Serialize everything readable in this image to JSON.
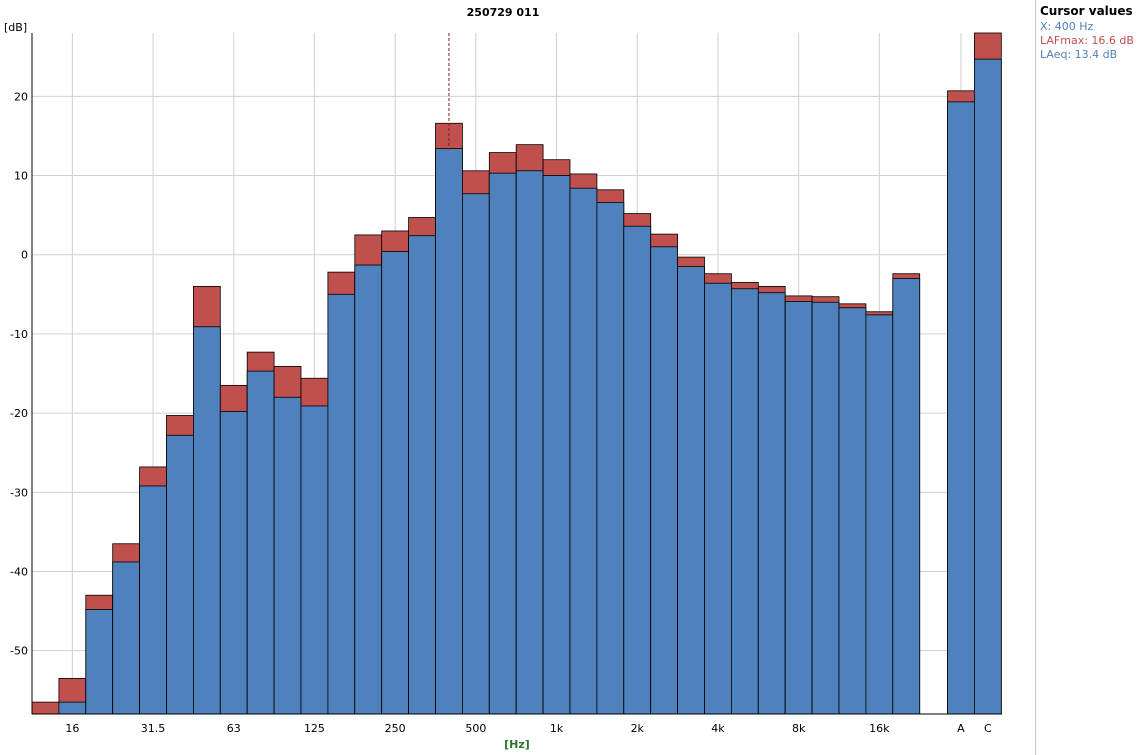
{
  "chart_data": {
    "type": "bar",
    "title": "250729 011",
    "xlabel": "[Hz]",
    "ylabel": "[dB]",
    "ylim": [
      -58,
      28
    ],
    "yticks": [
      20,
      10,
      0,
      -10,
      -20,
      -30,
      -40,
      -50
    ],
    "grid": true,
    "categories": [
      "12.5",
      "16",
      "20",
      "25",
      "31.5",
      "40",
      "50",
      "63",
      "80",
      "100",
      "125",
      "160",
      "200",
      "250",
      "315",
      "400",
      "500",
      "630",
      "800",
      "1k",
      "1.25k",
      "1.6k",
      "2k",
      "2.5k",
      "3.15k",
      "4k",
      "5k",
      "6.3k",
      "8k",
      "10k",
      "12.5k",
      "16k",
      "20k",
      "A",
      "C"
    ],
    "x_tick_labels": [
      {
        "index": 1,
        "label": "16"
      },
      {
        "index": 4,
        "label": "31.5"
      },
      {
        "index": 7,
        "label": "63"
      },
      {
        "index": 10,
        "label": "125"
      },
      {
        "index": 13,
        "label": "250"
      },
      {
        "index": 16,
        "label": "500"
      },
      {
        "index": 19,
        "label": "1k"
      },
      {
        "index": 22,
        "label": "2k"
      },
      {
        "index": 25,
        "label": "4k"
      },
      {
        "index": 28,
        "label": "8k"
      },
      {
        "index": 31,
        "label": "16k"
      },
      {
        "index": 33,
        "label": "A"
      },
      {
        "index": 34,
        "label": "C"
      }
    ],
    "series": [
      {
        "name": "LAFmax",
        "color": "#c0504d",
        "values": [
          -56.5,
          -53.5,
          -43.0,
          -36.5,
          -26.8,
          -20.3,
          -4.0,
          -16.5,
          -12.3,
          -14.1,
          -15.6,
          -2.2,
          2.5,
          3.0,
          4.7,
          16.6,
          10.6,
          12.9,
          13.9,
          12.0,
          10.2,
          8.2,
          5.2,
          2.6,
          -0.3,
          -2.4,
          -3.5,
          -4.0,
          -5.2,
          -5.3,
          -6.2,
          -7.2,
          -2.4,
          20.7,
          28.0
        ]
      },
      {
        "name": "LAeq",
        "color": "#4f81bd",
        "values": [
          -58.0,
          -56.5,
          -44.8,
          -38.8,
          -29.2,
          -22.8,
          -9.1,
          -19.8,
          -14.7,
          -18.0,
          -19.1,
          -5.0,
          -1.3,
          0.4,
          2.4,
          13.4,
          7.7,
          10.3,
          10.6,
          10.0,
          8.4,
          6.6,
          3.6,
          1.0,
          -1.5,
          -3.6,
          -4.3,
          -4.8,
          -5.9,
          -6.0,
          -6.7,
          -7.6,
          -3.0,
          19.3,
          24.7
        ]
      }
    ],
    "cursor_x_index": 15
  },
  "cursor_panel": {
    "header": "Cursor values",
    "x_line": "X: 400 Hz",
    "max_line": "LAFmax: 16.6 dB",
    "eq_line": "LAeq: 13.4 dB"
  }
}
